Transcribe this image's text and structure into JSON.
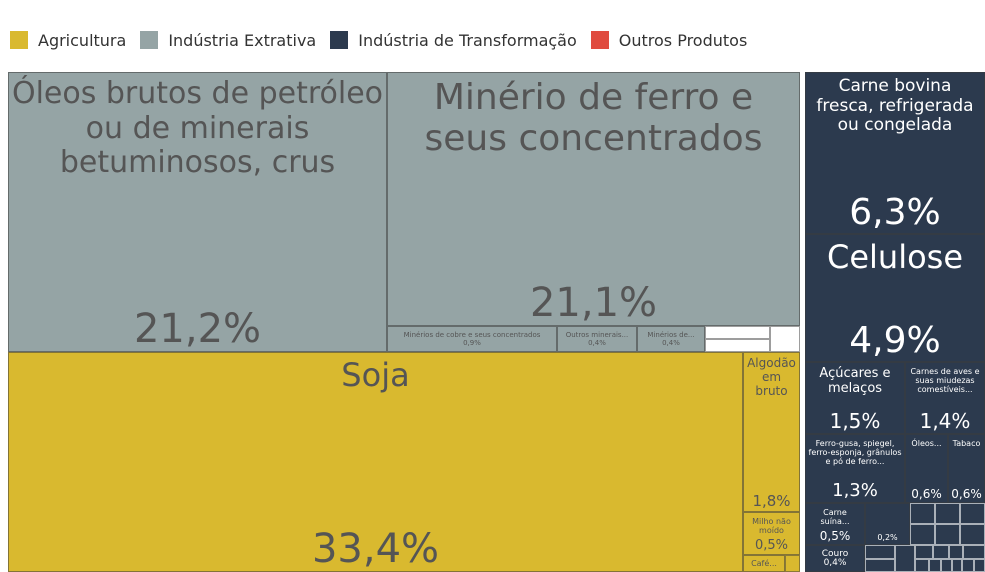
{
  "chart_data": {
    "type": "treemap",
    "groups": [
      {
        "name": "Agricultura",
        "color": "#d9b92f"
      },
      {
        "name": "Indústria Extrativa",
        "color": "#95a4a5"
      },
      {
        "name": "Indústria de Transformação",
        "color": "#2c3a4e"
      },
      {
        "name": "Outros Produtos",
        "color": "#e04c40"
      }
    ],
    "items": [
      {
        "name": "Óleos brutos de petróleo ou de minerais betuminosos, crus",
        "group": 1,
        "value": 21.2,
        "value_label": "21,2%"
      },
      {
        "name": "Minério de ferro e seus concentrados",
        "group": 1,
        "value": 21.1,
        "value_label": "21,1%"
      },
      {
        "name": "Minérios de cobre e seus concentrados",
        "group": 1,
        "value": 0.9,
        "value_label": "0,9%"
      },
      {
        "name": "Outros minerais...",
        "group": 1,
        "value": 0.4,
        "value_label": "0,4%"
      },
      {
        "name": "Minérios de...",
        "group": 1,
        "value": 0.4,
        "value_label": "0,4%"
      },
      {
        "name": "Soja",
        "group": 0,
        "value": 33.4,
        "value_label": "33,4%"
      },
      {
        "name": "Algodão em bruto",
        "group": 0,
        "value": 1.8,
        "value_label": "1,8%"
      },
      {
        "name": "Milho não moído",
        "group": 0,
        "value": 0.5,
        "value_label": "0,5%"
      },
      {
        "name": "Café...",
        "group": 0,
        "value": 0.3
      },
      {
        "name": "Carne bovina fresca, refrigerada ou congelada",
        "group": 2,
        "value": 6.3,
        "value_label": "6,3%"
      },
      {
        "name": "Celulose",
        "group": 2,
        "value": 4.9,
        "value_label": "4,9%"
      },
      {
        "name": "Açúcares e melaços",
        "group": 2,
        "value": 1.5,
        "value_label": "1,5%"
      },
      {
        "name": "Carnes de aves e suas miudezas comestíveis...",
        "group": 2,
        "value": 1.4,
        "value_label": "1,4%"
      },
      {
        "name": "Ferro-gusa, spiegel, ferro-esponja, grânulos e pó de ferro...",
        "group": 2,
        "value": 1.3,
        "value_label": "1,3%"
      },
      {
        "name": "Óleos...",
        "group": 2,
        "value": 0.6,
        "value_label": "0,6%"
      },
      {
        "name": "Tabaco",
        "group": 2,
        "value": 0.6,
        "value_label": "0,6%"
      },
      {
        "name": "Carne suína...",
        "group": 2,
        "value": 0.5,
        "value_label": "0,5%"
      },
      {
        "name": null,
        "group": 2,
        "value": 0.2,
        "value_label": "0,2%"
      },
      {
        "name": "Couro",
        "group": 2,
        "value": 0.4,
        "value_label": "0,4%"
      }
    ]
  }
}
